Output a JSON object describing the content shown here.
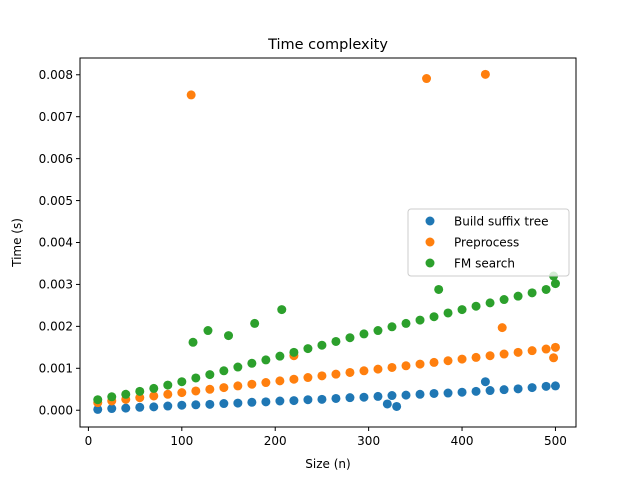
{
  "chart_data": {
    "type": "scatter",
    "title": "Time complexity",
    "xlabel": "Size (n)",
    "ylabel": "Time (s)",
    "xlim": [
      -9,
      522
    ],
    "ylim": [
      -0.0004,
      0.0084
    ],
    "xticks": [
      0,
      100,
      200,
      300,
      400,
      500
    ],
    "xtick_labels": [
      "0",
      "100",
      "200",
      "300",
      "400",
      "500"
    ],
    "yticks": [
      0,
      0.001,
      0.002,
      0.003,
      0.004,
      0.005,
      0.006,
      0.007,
      0.008
    ],
    "ytick_labels": [
      "0.000",
      "0.001",
      "0.002",
      "0.003",
      "0.004",
      "0.005",
      "0.006",
      "0.007",
      "0.008"
    ],
    "grid": false,
    "legend_position": "center-right",
    "series": [
      {
        "name": "Build suffix tree",
        "color": "#1f77b4",
        "x": [
          10,
          25,
          40,
          55,
          70,
          85,
          100,
          115,
          130,
          145,
          160,
          175,
          190,
          205,
          220,
          235,
          250,
          265,
          280,
          295,
          310,
          325,
          340,
          355,
          370,
          385,
          400,
          415,
          430,
          445,
          460,
          475,
          490,
          500,
          320,
          330,
          425
        ],
        "y": [
          2e-05,
          4e-05,
          5e-05,
          7e-05,
          8e-05,
          0.0001,
          0.00012,
          0.00013,
          0.00014,
          0.00016,
          0.00017,
          0.00019,
          0.0002,
          0.00022,
          0.00023,
          0.00025,
          0.00026,
          0.00028,
          0.0003,
          0.00031,
          0.00033,
          0.00035,
          0.00036,
          0.00038,
          0.0004,
          0.00041,
          0.00043,
          0.00045,
          0.00047,
          0.00049,
          0.00051,
          0.00054,
          0.00057,
          0.00058,
          0.00015,
          9e-05,
          0.00068
        ]
      },
      {
        "name": "Preprocess",
        "color": "#ff7f0e",
        "x": [
          10,
          25,
          40,
          55,
          70,
          85,
          100,
          115,
          130,
          145,
          160,
          175,
          190,
          205,
          220,
          235,
          250,
          265,
          280,
          295,
          310,
          325,
          340,
          355,
          370,
          385,
          400,
          415,
          430,
          445,
          460,
          475,
          490,
          500,
          110,
          362,
          425,
          443,
          220,
          498
        ],
        "y": [
          0.00018,
          0.00022,
          0.00026,
          0.0003,
          0.00034,
          0.00038,
          0.00042,
          0.00046,
          0.0005,
          0.00054,
          0.00058,
          0.00062,
          0.00066,
          0.0007,
          0.00074,
          0.00078,
          0.00082,
          0.00086,
          0.0009,
          0.00094,
          0.00098,
          0.00102,
          0.00106,
          0.0011,
          0.00114,
          0.00118,
          0.00122,
          0.00126,
          0.0013,
          0.00134,
          0.00138,
          0.00142,
          0.00146,
          0.0015,
          0.00752,
          0.00791,
          0.00801,
          0.00197,
          0.0013,
          0.00125
        ]
      },
      {
        "name": "FM search",
        "color": "#2ca02c",
        "x": [
          10,
          25,
          40,
          55,
          70,
          85,
          100,
          115,
          130,
          145,
          160,
          175,
          190,
          205,
          220,
          235,
          250,
          265,
          280,
          295,
          310,
          325,
          340,
          355,
          370,
          385,
          400,
          415,
          430,
          445,
          460,
          475,
          490,
          500,
          112,
          128,
          150,
          178,
          207,
          375,
          498
        ],
        "y": [
          0.00025,
          0.00032,
          0.00038,
          0.00045,
          0.00052,
          0.0006,
          0.00068,
          0.00077,
          0.00085,
          0.00094,
          0.00103,
          0.00112,
          0.0012,
          0.00129,
          0.00138,
          0.00147,
          0.00155,
          0.00164,
          0.00173,
          0.00182,
          0.0019,
          0.00199,
          0.00207,
          0.00215,
          0.00223,
          0.00232,
          0.0024,
          0.00248,
          0.00256,
          0.00264,
          0.00272,
          0.0028,
          0.00288,
          0.00302,
          0.00162,
          0.0019,
          0.00178,
          0.00207,
          0.0024,
          0.00288,
          0.0032
        ]
      }
    ]
  }
}
